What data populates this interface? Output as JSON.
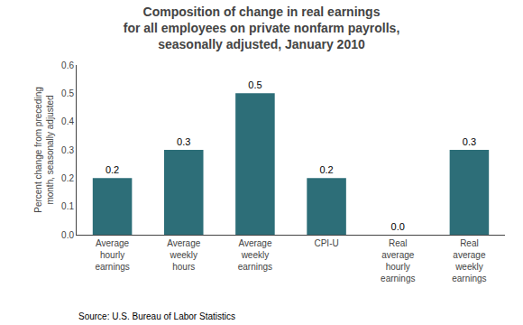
{
  "chart_data": {
    "type": "bar",
    "title": "Composition of change in real earnings\nfor all employees on private nonfarm payrolls,\nseasonally adjusted, January 2010",
    "categories": [
      "Average\nhourly\nearnings",
      "Average\nweekly\nhours",
      "Average\nweekly\nearnings",
      "CPI-U",
      "Real\naverage\nhourly\nearnings",
      "Real\naverage\nweekly\nearnings"
    ],
    "values": [
      0.2,
      0.3,
      0.5,
      0.2,
      0.0,
      0.3
    ],
    "value_labels": [
      "0.2",
      "0.3",
      "0.5",
      "0.2",
      "0.0",
      "0.3"
    ],
    "data_labels": true,
    "color": "#2d6e78",
    "ylabel": "Percent change from preceding\nmonth, seasonally adjusted",
    "ylim": [
      0.0,
      0.6
    ],
    "yticks": [
      {
        "value": 0.0,
        "label": "0.0"
      },
      {
        "value": 0.1,
        "label": "0.1"
      },
      {
        "value": 0.2,
        "label": "0.2"
      },
      {
        "value": 0.3,
        "label": "0.3"
      },
      {
        "value": 0.4,
        "label": "0.4"
      },
      {
        "value": 0.5,
        "label": "0.5"
      },
      {
        "value": 0.6,
        "label": "0.6"
      }
    ],
    "grid": false,
    "annotations": [
      "Source: U.S. Bureau of Labor Statistics"
    ]
  }
}
